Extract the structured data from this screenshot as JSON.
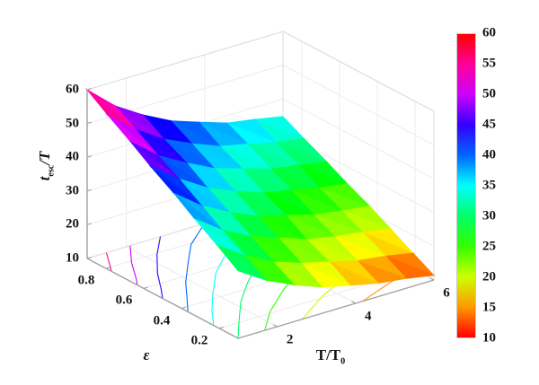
{
  "figure": {
    "background": "#ffffff"
  },
  "chart_data": {
    "type": "surface3d",
    "title": "",
    "xlabel": {
      "main": "T/T",
      "sub": "0"
    },
    "ylabel": "ε",
    "zlabel": {
      "pre": "t",
      "sub": "esc",
      "post": "/T"
    },
    "xlim": [
      1,
      6
    ],
    "ylim": [
      0.1,
      0.9
    ],
    "zlim": [
      10,
      60
    ],
    "clim": [
      10,
      60
    ],
    "xticks": [
      2,
      4,
      6
    ],
    "yticks": [
      0.8,
      0.6,
      0.4,
      0.2
    ],
    "zticks": [
      60,
      50,
      40,
      30,
      20,
      10
    ],
    "colormap": "hsv",
    "grid": true,
    "legend": "none",
    "colorbar": {
      "position": "right",
      "ticks": [
        60,
        55,
        50,
        45,
        40,
        35,
        30,
        25,
        20,
        15,
        10
      ]
    },
    "x_values": [
      1.0,
      1.71,
      2.43,
      3.14,
      3.86,
      4.57,
      5.29,
      6.0
    ],
    "y_values": [
      0.1,
      0.21,
      0.33,
      0.44,
      0.56,
      0.67,
      0.79,
      0.9
    ],
    "z_grid": [
      [
        30.0,
        24.8,
        20.9,
        17.8,
        15.8,
        14.0,
        12.9,
        11.4
      ],
      [
        34.3,
        28.8,
        24.5,
        21.6,
        19.5,
        17.4,
        16.3,
        14.7
      ],
      [
        38.6,
        32.8,
        28.5,
        25.6,
        22.6,
        21.0,
        19.8,
        18.4
      ],
      [
        42.9,
        36.8,
        32.3,
        28.7,
        26.5,
        24.2,
        22.9,
        21.8
      ],
      [
        47.1,
        41.2,
        36.1,
        32.5,
        29.6,
        28.0,
        26.1,
        25.0
      ],
      [
        51.4,
        44.8,
        40.2,
        36.1,
        33.5,
        31.0,
        29.6,
        28.3
      ],
      [
        55.7,
        49.0,
        43.7,
        39.9,
        36.6,
        34.8,
        32.8,
        31.6
      ],
      [
        60.0,
        52.8,
        47.6,
        43.4,
        40.5,
        37.8,
        36.4,
        34.8
      ]
    ],
    "floor_contour_levels": [
      15,
      20,
      25,
      30,
      35,
      40,
      45,
      50,
      55
    ]
  }
}
